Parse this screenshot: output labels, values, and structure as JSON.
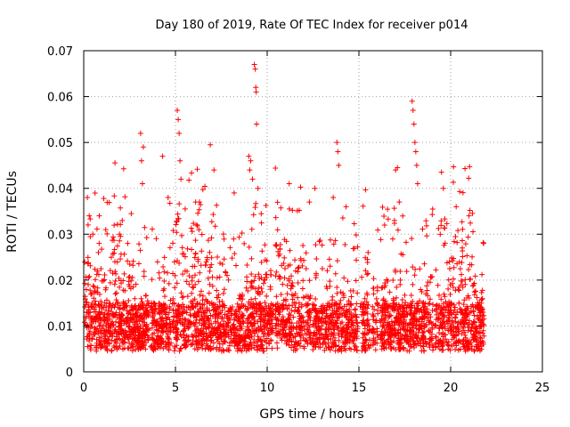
{
  "chart_data": {
    "type": "scatter",
    "title": "Day 180 of 2019, Rate Of TEC Index for receiver p014",
    "xlabel": "GPS time / hours",
    "ylabel": "ROTI / TECUs",
    "xlim": [
      0,
      25
    ],
    "ylim": [
      0,
      0.07
    ],
    "x_ticks": [
      0,
      5,
      10,
      15,
      20,
      25
    ],
    "x_tick_labels": [
      "0",
      "5",
      "10",
      "15",
      "20",
      "25"
    ],
    "y_ticks": [
      0,
      0.01,
      0.02,
      0.03,
      0.04,
      0.05,
      0.06,
      0.07
    ],
    "y_tick_labels": [
      "0",
      "0.01",
      "0.02",
      "0.03",
      "0.04",
      "0.05",
      "0.06",
      "0.07"
    ],
    "grid": true,
    "marker": "+",
    "series": [
      {
        "name": "ROTI",
        "color": "#ff0000",
        "description": "dense ROTI scatter, ~0.003-0.03 TECUs baseline with peaks",
        "points": [
          [
            0.1,
            0.012
          ],
          [
            0.2,
            0.038
          ],
          [
            0.3,
            0.034
          ],
          [
            0.5,
            0.03
          ],
          [
            0.8,
            0.026
          ],
          [
            1.2,
            0.031
          ],
          [
            1.7,
            0.024
          ],
          [
            2.1,
            0.033
          ],
          [
            2.4,
            0.028
          ],
          [
            3.1,
            0.052
          ],
          [
            3.15,
            0.046
          ],
          [
            3.2,
            0.041
          ],
          [
            3.25,
            0.049
          ],
          [
            4.3,
            0.047
          ],
          [
            4.6,
            0.038
          ],
          [
            5.1,
            0.057
          ],
          [
            5.15,
            0.055
          ],
          [
            5.2,
            0.052
          ],
          [
            5.25,
            0.046
          ],
          [
            5.3,
            0.042
          ],
          [
            6.1,
            0.037
          ],
          [
            6.9,
            0.0495
          ],
          [
            7.1,
            0.044
          ],
          [
            8.2,
            0.039
          ],
          [
            9.0,
            0.047
          ],
          [
            9.05,
            0.044
          ],
          [
            9.1,
            0.046
          ],
          [
            9.2,
            0.042
          ],
          [
            9.3,
            0.067
          ],
          [
            9.35,
            0.066
          ],
          [
            9.38,
            0.062
          ],
          [
            9.4,
            0.061
          ],
          [
            9.42,
            0.054
          ],
          [
            9.5,
            0.04
          ],
          [
            11.2,
            0.041
          ],
          [
            12.3,
            0.037
          ],
          [
            12.6,
            0.04
          ],
          [
            13.6,
            0.038
          ],
          [
            13.8,
            0.05
          ],
          [
            13.85,
            0.048
          ],
          [
            13.9,
            0.045
          ],
          [
            14.3,
            0.036
          ],
          [
            15.5,
            0.026
          ],
          [
            16.4,
            0.032
          ],
          [
            17.0,
            0.044
          ],
          [
            17.1,
            0.0445
          ],
          [
            17.2,
            0.037
          ],
          [
            17.9,
            0.059
          ],
          [
            17.95,
            0.057
          ],
          [
            18.0,
            0.054
          ],
          [
            18.05,
            0.05
          ],
          [
            18.1,
            0.048
          ],
          [
            18.15,
            0.045
          ],
          [
            18.2,
            0.041
          ],
          [
            19.5,
            0.0435
          ],
          [
            19.6,
            0.04
          ],
          [
            20.3,
            0.036
          ],
          [
            21.0,
            0.034
          ],
          [
            21.8,
            0.028
          ]
        ]
      }
    ]
  }
}
